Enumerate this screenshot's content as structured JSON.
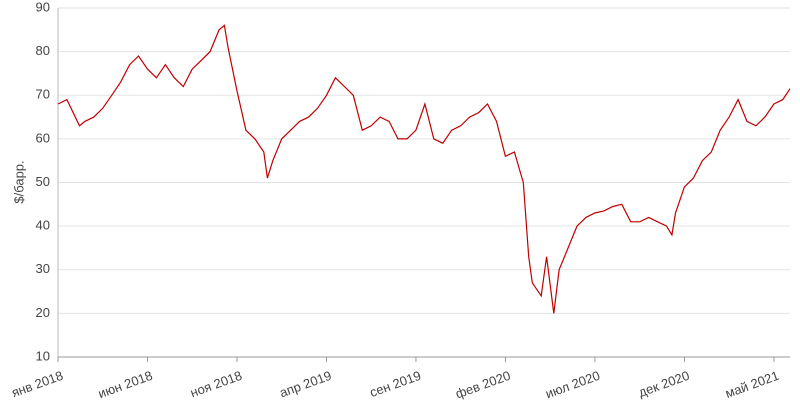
{
  "chart_data": {
    "type": "line",
    "y_label": "$/барр.",
    "x": [
      0,
      0.5,
      1.2,
      1.5,
      2,
      2.5,
      3,
      3.5,
      4,
      4.5,
      5,
      5.5,
      6,
      6.5,
      7,
      7.5,
      8,
      8.5,
      9,
      9.3,
      9.5,
      10,
      10.5,
      11,
      11.5,
      11.7,
      12,
      12.5,
      13,
      13.5,
      14,
      14.5,
      15,
      15.5,
      16,
      16.5,
      17,
      17.5,
      18,
      18.5,
      19,
      19.5,
      20,
      20.5,
      21,
      21.5,
      22,
      22.5,
      23,
      23.5,
      24,
      24.5,
      25,
      25.5,
      26,
      26.3,
      26.5,
      27,
      27.3,
      27.7,
      28,
      28.5,
      29,
      29.5,
      30,
      30.5,
      31,
      31.5,
      32,
      32.5,
      33,
      33.5,
      34,
      34.3,
      34.5,
      35,
      35.5,
      36,
      36.5,
      37,
      37.5,
      38,
      38.5,
      39,
      39.5,
      40,
      40.5,
      40.9
    ],
    "series": [
      {
        "color": "#c00000",
        "values": [
          68,
          69,
          63,
          64,
          65,
          67,
          70,
          73,
          77,
          79,
          76,
          74,
          77,
          74,
          72,
          76,
          78,
          80,
          85,
          86,
          81,
          71,
          62,
          60,
          57,
          51,
          55,
          60,
          62,
          64,
          65,
          67,
          70,
          74,
          72,
          70,
          62,
          63,
          65,
          64,
          60,
          60,
          62,
          68,
          60,
          59,
          62,
          63,
          65,
          66,
          68,
          64,
          56,
          57,
          50,
          33,
          27,
          24,
          33,
          20,
          30,
          35,
          40,
          42,
          43,
          43.5,
          44.5,
          45,
          41,
          41,
          42,
          41,
          40,
          38,
          43,
          49,
          51,
          55,
          57,
          62,
          65,
          69,
          64,
          63,
          65,
          68,
          69,
          71.5
        ]
      }
    ],
    "xlim": [
      0,
      40.9
    ],
    "xticks": [
      {
        "value": 0,
        "label": "янв 2018"
      },
      {
        "value": 5,
        "label": "июн 2018"
      },
      {
        "value": 10,
        "label": "ноя 2018"
      },
      {
        "value": 15,
        "label": "апр 2019"
      },
      {
        "value": 20,
        "label": "сен 2019"
      },
      {
        "value": 25,
        "label": "фев 2020"
      },
      {
        "value": 30,
        "label": "июл 2020"
      },
      {
        "value": 35,
        "label": "дек 2020"
      },
      {
        "value": 40,
        "label": "май 2021"
      }
    ],
    "ylim": [
      10,
      90
    ],
    "yticks": [
      10,
      20,
      30,
      40,
      50,
      60,
      70,
      80,
      90
    ],
    "grid": true
  }
}
